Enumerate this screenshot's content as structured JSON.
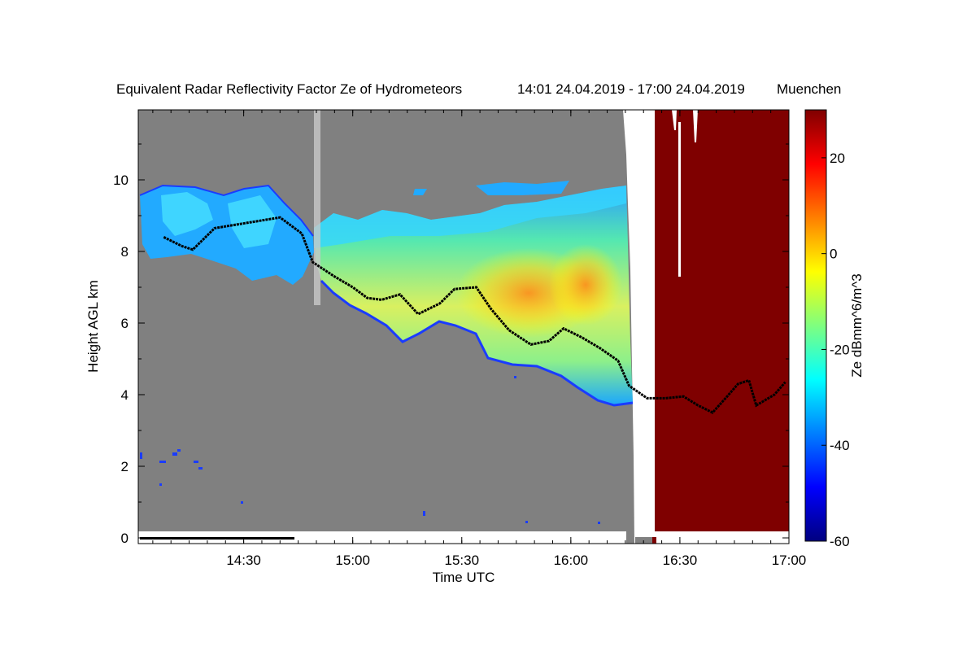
{
  "chart_data": {
    "type": "heatmap",
    "title": "Equivalent Radar Reflectivity Factor Ze of Hydrometeors",
    "period": "14:01 24.04.2019 - 17:00 24.04.2019",
    "location": "Muenchen",
    "xlabel": "Time UTC",
    "ylabel": "Height AGL km",
    "xlim": [
      "14:01",
      "17:00"
    ],
    "ylim": [
      0,
      12
    ],
    "xticks": [
      "14:30",
      "15:00",
      "15:30",
      "16:00",
      "16:30",
      "17:00"
    ],
    "yticks": [
      0,
      2,
      4,
      6,
      8,
      10
    ],
    "colorbar": {
      "label": "Ze dBmm^6/m^3",
      "range": [
        -60,
        30
      ],
      "ticks": [
        -60,
        -40,
        -20,
        0,
        20
      ],
      "colors": [
        "#00007f",
        "#0000ff",
        "#007fff",
        "#00ffff",
        "#7fff7f",
        "#ffff00",
        "#ff7f00",
        "#ff0000",
        "#7f0000"
      ]
    },
    "colors": {
      "background_no_signal": "#808080",
      "data_gap": "#ffffff",
      "saturated": "#7f0000",
      "cloud_base_line": "#000000"
    },
    "cloud_base_km": [
      {
        "time": "14:08",
        "h": 8.4
      },
      {
        "time": "14:13",
        "h": 8.15
      },
      {
        "time": "14:16",
        "h": 8.05
      },
      {
        "time": "14:22",
        "h": 8.65
      },
      {
        "time": "14:40",
        "h": 8.95
      },
      {
        "time": "14:46",
        "h": 8.5
      },
      {
        "time": "14:49",
        "h": 7.7
      },
      {
        "time": "14:55",
        "h": 7.3
      },
      {
        "time": "15:00",
        "h": 7.0
      },
      {
        "time": "15:04",
        "h": 6.7
      },
      {
        "time": "15:08",
        "h": 6.65
      },
      {
        "time": "15:13",
        "h": 6.8
      },
      {
        "time": "15:18",
        "h": 6.25
      },
      {
        "time": "15:24",
        "h": 6.55
      },
      {
        "time": "15:28",
        "h": 6.95
      },
      {
        "time": "15:34",
        "h": 7.0
      },
      {
        "time": "15:38",
        "h": 6.4
      },
      {
        "time": "15:43",
        "h": 5.8
      },
      {
        "time": "15:49",
        "h": 5.4
      },
      {
        "time": "15:54",
        "h": 5.5
      },
      {
        "time": "15:58",
        "h": 5.85
      },
      {
        "time": "16:03",
        "h": 5.6
      },
      {
        "time": "16:08",
        "h": 5.3
      },
      {
        "time": "16:13",
        "h": 4.95
      },
      {
        "time": "16:16",
        "h": 4.25
      },
      {
        "time": "16:21",
        "h": 3.9
      },
      {
        "time": "16:26",
        "h": 3.9
      },
      {
        "time": "16:31",
        "h": 3.95
      },
      {
        "time": "16:35",
        "h": 3.7
      },
      {
        "time": "16:39",
        "h": 3.5
      },
      {
        "time": "16:43",
        "h": 3.95
      },
      {
        "time": "16:46",
        "h": 4.3
      },
      {
        "time": "16:49",
        "h": 4.4
      },
      {
        "time": "16:51",
        "h": 3.7
      },
      {
        "time": "16:56",
        "h": 4.0
      },
      {
        "time": "16:59",
        "h": 4.35
      }
    ],
    "data_gap_window": [
      "16:20",
      "16:24"
    ],
    "saturated_window": [
      "16:24",
      "17:00"
    ]
  }
}
